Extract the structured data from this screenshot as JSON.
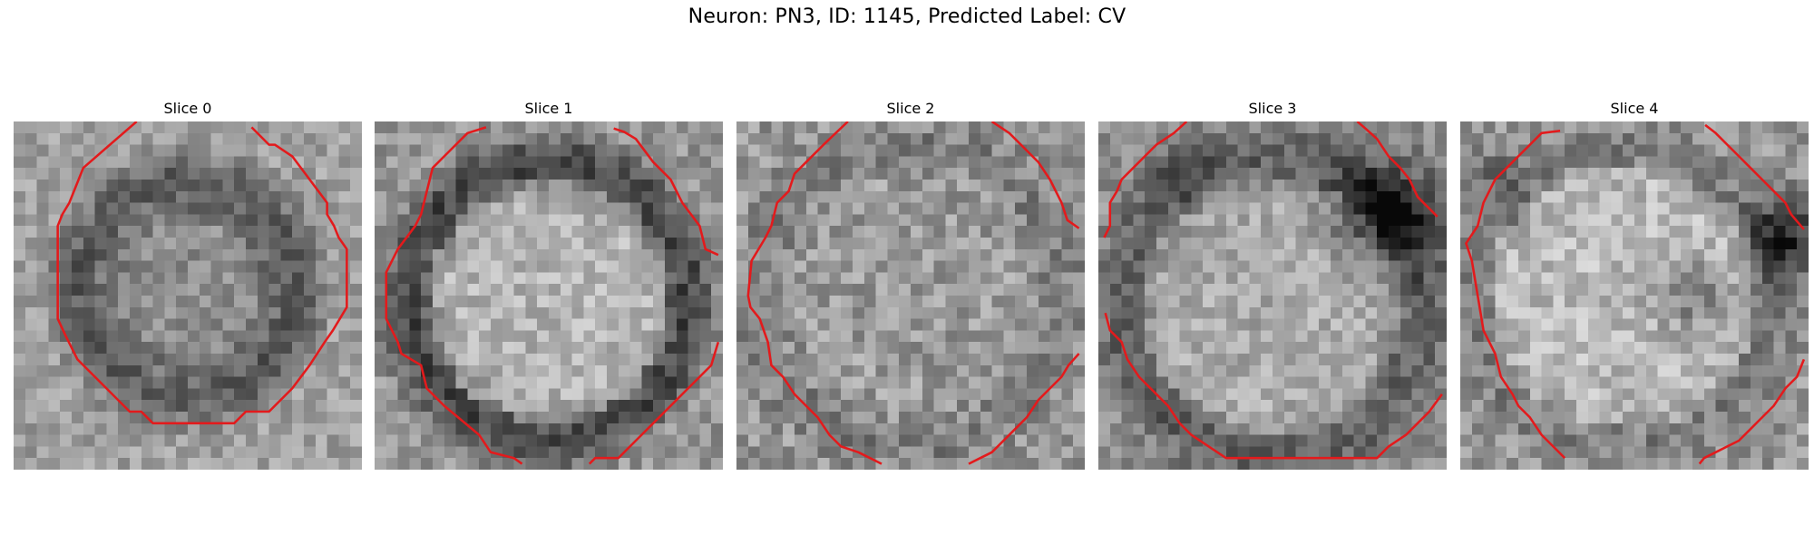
{
  "figure": {
    "suptitle": "Neuron: PN3, ID: 1145, Predicted Label: CV"
  },
  "panels": [
    {
      "title": "Slice 0",
      "contour_shape": "closed octagon around darker membrane ring",
      "contour_color": "#e31a1c"
    },
    {
      "title": "Slice 1",
      "contour_shape": "open contour, arcs clipped at top-right and bottom",
      "contour_color": "#e31a1c"
    },
    {
      "title": "Slice 2",
      "contour_shape": "open contour, arcs clipped at top and bottom",
      "contour_color": "#e31a1c"
    },
    {
      "title": "Slice 3",
      "contour_shape": "open contour, dark region in upper right",
      "contour_color": "#e31a1c"
    },
    {
      "title": "Slice 4",
      "contour_shape": "open contour, dark region on right edge",
      "contour_color": "#e31a1c"
    }
  ],
  "colors": {
    "contour": "#e31a1c",
    "image_colormap": "grayscale"
  }
}
